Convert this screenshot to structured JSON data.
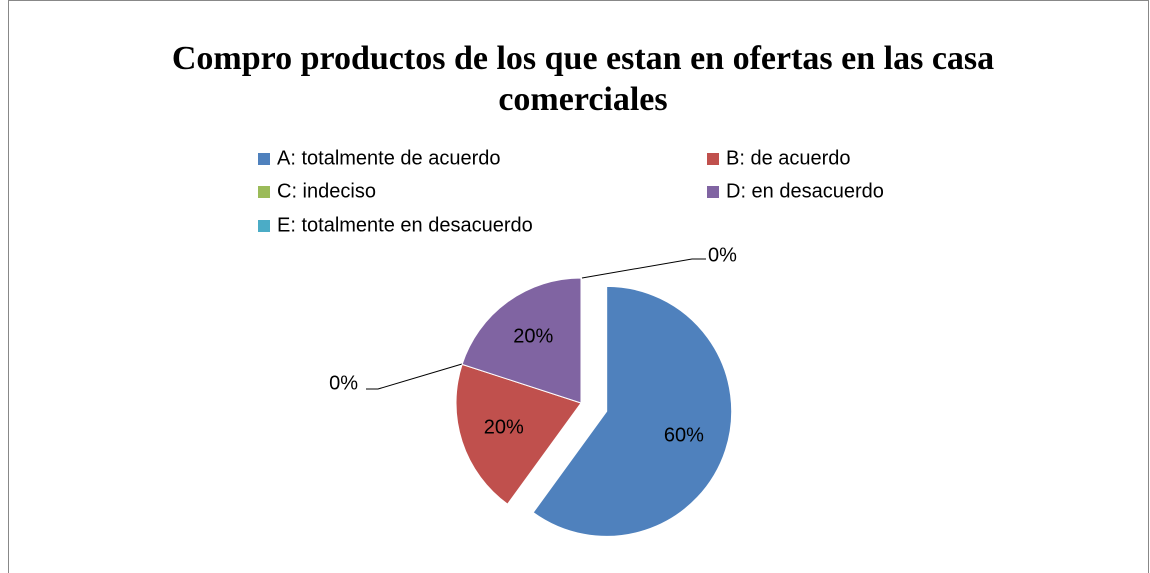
{
  "chart_data": {
    "type": "pie",
    "title": "Compro productos de los que estan en ofertas en las casa comerciales",
    "categories": [
      "A: totalmente de acuerdo",
      "B: de acuerdo",
      "C: indeciso",
      "D: en desacuerdo",
      "E: totalmente en desacuerdo"
    ],
    "values": [
      60,
      20,
      0,
      20,
      0
    ],
    "value_labels": [
      "60%",
      "20%",
      "0%",
      "20%",
      "0%"
    ],
    "colors": [
      "#4f81bd",
      "#c0504d",
      "#9bbb59",
      "#8064a2",
      "#4bacc6"
    ]
  }
}
